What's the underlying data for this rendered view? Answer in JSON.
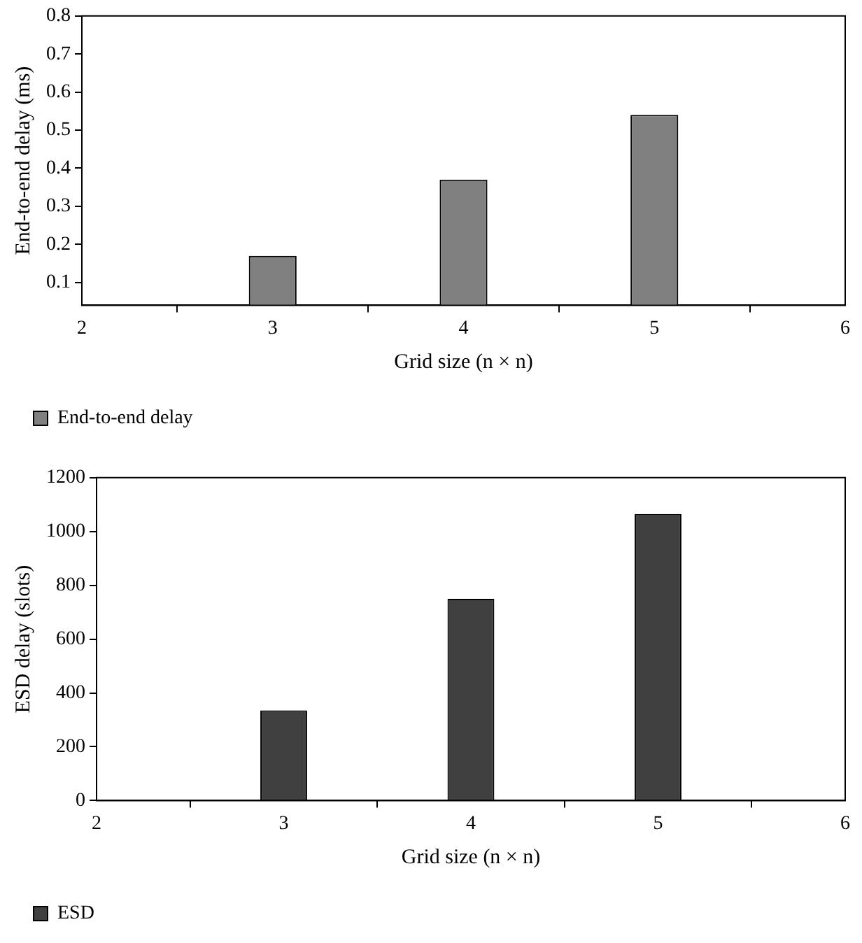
{
  "chart_data": [
    {
      "type": "bar",
      "x": [
        3,
        4,
        5
      ],
      "xlim": [
        2,
        6
      ],
      "xticks": [
        2,
        3,
        4,
        5,
        6
      ],
      "ylim": [
        0.04,
        0.8
      ],
      "yticks": [
        0.1,
        0.2,
        0.3,
        0.4,
        0.5,
        0.6,
        0.7,
        0.8
      ],
      "xlabel": "Grid size (n × n)",
      "ylabel": "End-to-end delay (ms)",
      "legend": "bottom left",
      "grid": false,
      "series": [
        {
          "name": "End-to-end delay",
          "color": "#808080",
          "values": [
            0.17,
            0.37,
            0.54
          ]
        }
      ]
    },
    {
      "type": "bar",
      "x": [
        3,
        4,
        5
      ],
      "xlim": [
        2,
        6
      ],
      "xticks": [
        2,
        3,
        4,
        5,
        6
      ],
      "ylim": [
        0,
        1200
      ],
      "yticks": [
        0,
        200,
        400,
        600,
        800,
        1000,
        1200
      ],
      "xlabel": "Grid size (n × n)",
      "ylabel": "ESD delay (slots)",
      "legend": "bottom left",
      "grid": false,
      "series": [
        {
          "name": "ESD",
          "color": "#404040",
          "values": [
            335,
            750,
            1065
          ]
        }
      ]
    }
  ]
}
